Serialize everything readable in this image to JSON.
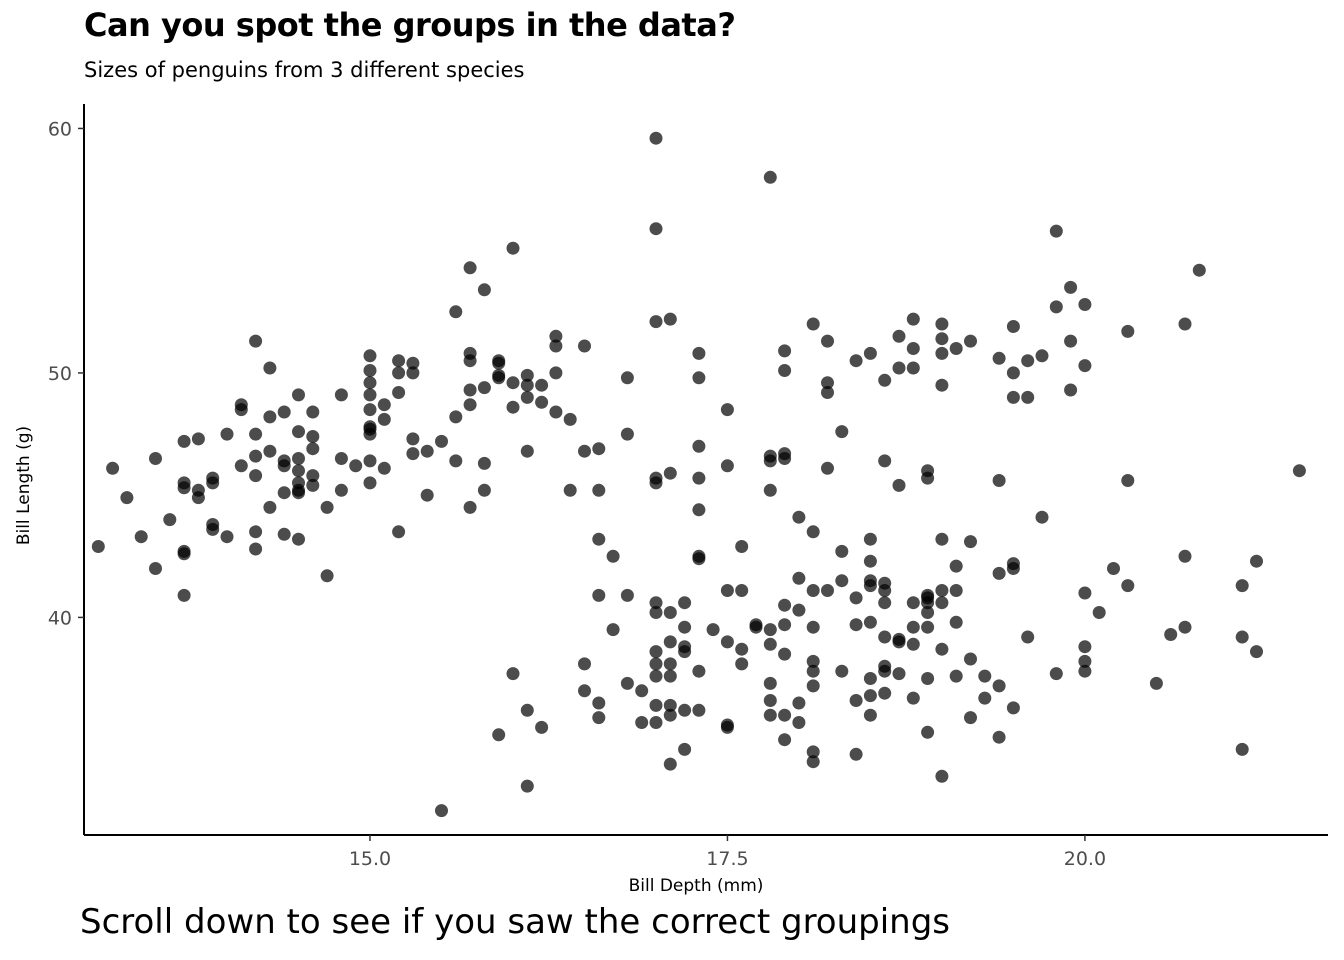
{
  "caption": "Scroll down to see if you saw the correct groupings",
  "colors": {
    "point": "#000000",
    "axis": "#000000",
    "tick_text": "#4d4d4d"
  },
  "chart_data": {
    "type": "scatter",
    "title": "Can you spot the groups in the data?",
    "subtitle": "Sizes of penguins from 3 different species",
    "xlabel": "Bill Depth (mm)",
    "ylabel": "Bill Length (g)",
    "xlim": [
      13.0,
      21.7
    ],
    "ylim": [
      31.1,
      61.0
    ],
    "xticks": [
      15.0,
      17.5,
      20.0
    ],
    "xtick_labels": [
      "15.0",
      "17.5",
      "20.0"
    ],
    "yticks": [
      40,
      50,
      60
    ],
    "ytick_labels": [
      "40",
      "50",
      "60"
    ],
    "grid": false,
    "point_opacity": 0.7,
    "points": [
      [
        13.1,
        42.9
      ],
      [
        13.2,
        46.1
      ],
      [
        13.3,
        44.9
      ],
      [
        13.4,
        43.3
      ],
      [
        13.5,
        42.0
      ],
      [
        13.5,
        46.5
      ],
      [
        13.6,
        44.0
      ],
      [
        13.7,
        47.2
      ],
      [
        13.7,
        45.5
      ],
      [
        13.7,
        45.3
      ],
      [
        13.7,
        42.7
      ],
      [
        13.7,
        42.6
      ],
      [
        13.7,
        40.9
      ],
      [
        13.8,
        47.3
      ],
      [
        13.8,
        45.2
      ],
      [
        13.8,
        44.9
      ],
      [
        13.9,
        45.7
      ],
      [
        13.9,
        45.5
      ],
      [
        13.9,
        43.8
      ],
      [
        13.9,
        43.6
      ],
      [
        14.0,
        47.5
      ],
      [
        14.0,
        43.3
      ],
      [
        14.1,
        46.2
      ],
      [
        14.1,
        48.7
      ],
      [
        14.1,
        48.5
      ],
      [
        14.2,
        51.3
      ],
      [
        14.2,
        47.5
      ],
      [
        14.2,
        46.6
      ],
      [
        14.2,
        45.8
      ],
      [
        14.2,
        43.5
      ],
      [
        14.2,
        42.8
      ],
      [
        14.3,
        50.2
      ],
      [
        14.3,
        48.2
      ],
      [
        14.3,
        46.8
      ],
      [
        14.3,
        44.5
      ],
      [
        14.4,
        48.4
      ],
      [
        14.4,
        46.4
      ],
      [
        14.4,
        45.1
      ],
      [
        14.4,
        43.4
      ],
      [
        14.4,
        46.2
      ],
      [
        14.5,
        49.1
      ],
      [
        14.5,
        47.6
      ],
      [
        14.5,
        46.5
      ],
      [
        14.5,
        45.5
      ],
      [
        14.5,
        45.1
      ],
      [
        14.5,
        45.2
      ],
      [
        14.5,
        43.2
      ],
      [
        14.5,
        46.0
      ],
      [
        14.6,
        48.4
      ],
      [
        14.6,
        47.4
      ],
      [
        14.6,
        46.9
      ],
      [
        14.6,
        45.8
      ],
      [
        14.6,
        45.4
      ],
      [
        14.7,
        44.5
      ],
      [
        14.7,
        41.7
      ],
      [
        14.8,
        49.1
      ],
      [
        14.8,
        46.5
      ],
      [
        14.8,
        45.2
      ],
      [
        14.9,
        46.2
      ],
      [
        15.0,
        50.7
      ],
      [
        15.0,
        50.1
      ],
      [
        15.0,
        49.6
      ],
      [
        15.0,
        49.1
      ],
      [
        15.0,
        48.5
      ],
      [
        15.0,
        47.8
      ],
      [
        15.0,
        47.5
      ],
      [
        15.0,
        46.4
      ],
      [
        15.0,
        45.5
      ],
      [
        15.0,
        47.7
      ],
      [
        15.1,
        48.7
      ],
      [
        15.1,
        48.1
      ],
      [
        15.1,
        46.1
      ],
      [
        15.2,
        50.5
      ],
      [
        15.2,
        50.0
      ],
      [
        15.2,
        49.2
      ],
      [
        15.2,
        43.5
      ],
      [
        15.3,
        50.4
      ],
      [
        15.3,
        50.0
      ],
      [
        15.3,
        47.3
      ],
      [
        15.3,
        46.7
      ],
      [
        15.4,
        46.8
      ],
      [
        15.4,
        45.0
      ],
      [
        15.5,
        47.2
      ],
      [
        15.5,
        32.1
      ],
      [
        15.6,
        52.5
      ],
      [
        15.6,
        48.2
      ],
      [
        15.6,
        46.4
      ],
      [
        15.7,
        54.3
      ],
      [
        15.7,
        50.8
      ],
      [
        15.7,
        50.5
      ],
      [
        15.7,
        49.3
      ],
      [
        15.7,
        48.7
      ],
      [
        15.7,
        44.5
      ],
      [
        15.8,
        53.4
      ],
      [
        15.8,
        49.4
      ],
      [
        15.8,
        46.3
      ],
      [
        15.8,
        45.2
      ],
      [
        15.9,
        50.5
      ],
      [
        15.9,
        50.4
      ],
      [
        15.9,
        49.9
      ],
      [
        15.9,
        49.8
      ],
      [
        15.9,
        35.2
      ],
      [
        16.0,
        55.1
      ],
      [
        16.0,
        49.6
      ],
      [
        16.0,
        48.6
      ],
      [
        16.0,
        37.7
      ],
      [
        16.1,
        49.9
      ],
      [
        16.1,
        49.5
      ],
      [
        16.1,
        49.0
      ],
      [
        16.1,
        46.8
      ],
      [
        16.1,
        36.2
      ],
      [
        16.1,
        33.1
      ],
      [
        16.2,
        49.5
      ],
      [
        16.2,
        48.8
      ],
      [
        16.2,
        35.5
      ],
      [
        16.3,
        51.5
      ],
      [
        16.3,
        51.1
      ],
      [
        16.3,
        50.0
      ],
      [
        16.3,
        48.4
      ],
      [
        16.4,
        48.1
      ],
      [
        16.4,
        45.2
      ],
      [
        16.5,
        51.1
      ],
      [
        16.5,
        46.8
      ],
      [
        16.5,
        38.1
      ],
      [
        16.5,
        37.0
      ],
      [
        16.6,
        46.9
      ],
      [
        16.6,
        45.2
      ],
      [
        16.6,
        43.2
      ],
      [
        16.6,
        40.9
      ],
      [
        16.6,
        36.5
      ],
      [
        16.6,
        35.9
      ],
      [
        16.7,
        42.5
      ],
      [
        16.7,
        39.5
      ],
      [
        16.8,
        49.8
      ],
      [
        16.8,
        47.5
      ],
      [
        16.8,
        40.9
      ],
      [
        16.8,
        37.3
      ],
      [
        16.9,
        37.0
      ],
      [
        16.9,
        35.7
      ],
      [
        17.0,
        59.6
      ],
      [
        17.0,
        55.9
      ],
      [
        17.0,
        52.1
      ],
      [
        17.0,
        45.7
      ],
      [
        17.0,
        45.5
      ],
      [
        17.0,
        40.6
      ],
      [
        17.0,
        40.2
      ],
      [
        17.0,
        38.6
      ],
      [
        17.0,
        38.1
      ],
      [
        17.0,
        37.6
      ],
      [
        17.0,
        36.4
      ],
      [
        17.0,
        35.7
      ],
      [
        17.1,
        52.2
      ],
      [
        17.1,
        45.9
      ],
      [
        17.1,
        40.2
      ],
      [
        17.1,
        39.0
      ],
      [
        17.1,
        38.1
      ],
      [
        17.1,
        37.6
      ],
      [
        17.1,
        36.4
      ],
      [
        17.1,
        36.0
      ],
      [
        17.1,
        34.0
      ],
      [
        17.2,
        40.6
      ],
      [
        17.2,
        39.6
      ],
      [
        17.2,
        38.8
      ],
      [
        17.2,
        38.6
      ],
      [
        17.2,
        36.2
      ],
      [
        17.2,
        34.6
      ],
      [
        17.3,
        50.8
      ],
      [
        17.3,
        49.8
      ],
      [
        17.3,
        47.0
      ],
      [
        17.3,
        45.7
      ],
      [
        17.3,
        44.4
      ],
      [
        17.3,
        42.5
      ],
      [
        17.3,
        42.4
      ],
      [
        17.3,
        37.8
      ],
      [
        17.3,
        36.2
      ],
      [
        17.4,
        39.5
      ],
      [
        17.5,
        48.5
      ],
      [
        17.5,
        46.2
      ],
      [
        17.5,
        41.1
      ],
      [
        17.5,
        39.0
      ],
      [
        17.5,
        35.6
      ],
      [
        17.5,
        35.5
      ],
      [
        17.6,
        42.9
      ],
      [
        17.6,
        41.1
      ],
      [
        17.6,
        38.7
      ],
      [
        17.6,
        38.1
      ],
      [
        17.7,
        39.7
      ],
      [
        17.7,
        39.6
      ],
      [
        17.8,
        58.0
      ],
      [
        17.8,
        46.6
      ],
      [
        17.8,
        46.4
      ],
      [
        17.8,
        45.2
      ],
      [
        17.8,
        39.5
      ],
      [
        17.8,
        38.9
      ],
      [
        17.8,
        37.3
      ],
      [
        17.8,
        36.6
      ],
      [
        17.8,
        36.0
      ],
      [
        17.9,
        50.9
      ],
      [
        17.9,
        50.1
      ],
      [
        17.9,
        46.7
      ],
      [
        17.9,
        46.5
      ],
      [
        17.9,
        40.5
      ],
      [
        17.9,
        39.7
      ],
      [
        17.9,
        38.5
      ],
      [
        17.9,
        36.0
      ],
      [
        17.9,
        35.0
      ],
      [
        18.0,
        44.1
      ],
      [
        18.0,
        41.6
      ],
      [
        18.0,
        40.3
      ],
      [
        18.0,
        36.5
      ],
      [
        18.0,
        35.7
      ],
      [
        18.1,
        52.0
      ],
      [
        18.1,
        43.5
      ],
      [
        18.1,
        41.1
      ],
      [
        18.1,
        39.6
      ],
      [
        18.1,
        38.2
      ],
      [
        18.1,
        37.8
      ],
      [
        18.1,
        37.2
      ],
      [
        18.1,
        34.5
      ],
      [
        18.1,
        34.1
      ],
      [
        18.2,
        51.3
      ],
      [
        18.2,
        49.6
      ],
      [
        18.2,
        49.2
      ],
      [
        18.2,
        46.1
      ],
      [
        18.2,
        41.1
      ],
      [
        18.3,
        47.6
      ],
      [
        18.3,
        42.7
      ],
      [
        18.3,
        41.5
      ],
      [
        18.3,
        37.8
      ],
      [
        18.4,
        50.5
      ],
      [
        18.4,
        40.8
      ],
      [
        18.4,
        39.7
      ],
      [
        18.4,
        36.6
      ],
      [
        18.4,
        34.4
      ],
      [
        18.5,
        50.8
      ],
      [
        18.5,
        43.2
      ],
      [
        18.5,
        42.3
      ],
      [
        18.5,
        41.5
      ],
      [
        18.5,
        41.3
      ],
      [
        18.5,
        39.8
      ],
      [
        18.5,
        37.5
      ],
      [
        18.5,
        36.8
      ],
      [
        18.5,
        36.0
      ],
      [
        18.6,
        49.7
      ],
      [
        18.6,
        46.4
      ],
      [
        18.6,
        41.4
      ],
      [
        18.6,
        41.1
      ],
      [
        18.6,
        40.6
      ],
      [
        18.6,
        39.2
      ],
      [
        18.6,
        38.0
      ],
      [
        18.6,
        37.8
      ],
      [
        18.6,
        36.9
      ],
      [
        18.7,
        51.5
      ],
      [
        18.7,
        50.2
      ],
      [
        18.7,
        45.4
      ],
      [
        18.7,
        39.1
      ],
      [
        18.7,
        39.0
      ],
      [
        18.7,
        37.7
      ],
      [
        18.8,
        52.2
      ],
      [
        18.8,
        51.0
      ],
      [
        18.8,
        50.2
      ],
      [
        18.8,
        40.6
      ],
      [
        18.8,
        39.6
      ],
      [
        18.8,
        38.9
      ],
      [
        18.8,
        36.7
      ],
      [
        18.9,
        46.0
      ],
      [
        18.9,
        45.7
      ],
      [
        18.9,
        40.9
      ],
      [
        18.9,
        40.8
      ],
      [
        18.9,
        40.6
      ],
      [
        18.9,
        40.2
      ],
      [
        18.9,
        39.6
      ],
      [
        18.9,
        37.5
      ],
      [
        18.9,
        35.3
      ],
      [
        19.0,
        52.0
      ],
      [
        19.0,
        51.4
      ],
      [
        19.0,
        50.8
      ],
      [
        19.0,
        49.5
      ],
      [
        19.0,
        43.2
      ],
      [
        19.0,
        41.1
      ],
      [
        19.0,
        40.6
      ],
      [
        19.0,
        38.7
      ],
      [
        19.0,
        33.5
      ],
      [
        19.1,
        51.0
      ],
      [
        19.1,
        42.1
      ],
      [
        19.1,
        41.1
      ],
      [
        19.1,
        39.8
      ],
      [
        19.1,
        37.6
      ],
      [
        19.2,
        51.3
      ],
      [
        19.2,
        43.1
      ],
      [
        19.2,
        38.3
      ],
      [
        19.2,
        35.9
      ],
      [
        19.3,
        37.6
      ],
      [
        19.3,
        36.7
      ],
      [
        19.4,
        50.6
      ],
      [
        19.4,
        45.6
      ],
      [
        19.4,
        41.8
      ],
      [
        19.4,
        37.2
      ],
      [
        19.4,
        35.1
      ],
      [
        19.5,
        51.9
      ],
      [
        19.5,
        50.0
      ],
      [
        19.5,
        49.0
      ],
      [
        19.5,
        42.2
      ],
      [
        19.5,
        42.0
      ],
      [
        19.5,
        36.3
      ],
      [
        19.6,
        50.5
      ],
      [
        19.6,
        49.0
      ],
      [
        19.6,
        39.2
      ],
      [
        19.7,
        50.7
      ],
      [
        19.7,
        44.1
      ],
      [
        19.8,
        55.8
      ],
      [
        19.8,
        52.7
      ],
      [
        19.8,
        37.7
      ],
      [
        19.9,
        53.5
      ],
      [
        19.9,
        51.3
      ],
      [
        19.9,
        49.3
      ],
      [
        20.0,
        52.8
      ],
      [
        20.0,
        50.3
      ],
      [
        20.0,
        41.0
      ],
      [
        20.0,
        38.8
      ],
      [
        20.0,
        38.2
      ],
      [
        20.0,
        37.8
      ],
      [
        20.1,
        40.2
      ],
      [
        20.2,
        42.0
      ],
      [
        20.3,
        51.7
      ],
      [
        20.3,
        45.6
      ],
      [
        20.3,
        41.3
      ],
      [
        20.5,
        37.3
      ],
      [
        20.6,
        39.3
      ],
      [
        20.7,
        52.0
      ],
      [
        20.7,
        42.5
      ],
      [
        20.7,
        39.6
      ],
      [
        20.8,
        54.2
      ],
      [
        21.1,
        41.3
      ],
      [
        21.1,
        39.2
      ],
      [
        21.1,
        34.6
      ],
      [
        21.2,
        42.3
      ],
      [
        21.2,
        38.6
      ],
      [
        21.5,
        46.0
      ]
    ]
  }
}
